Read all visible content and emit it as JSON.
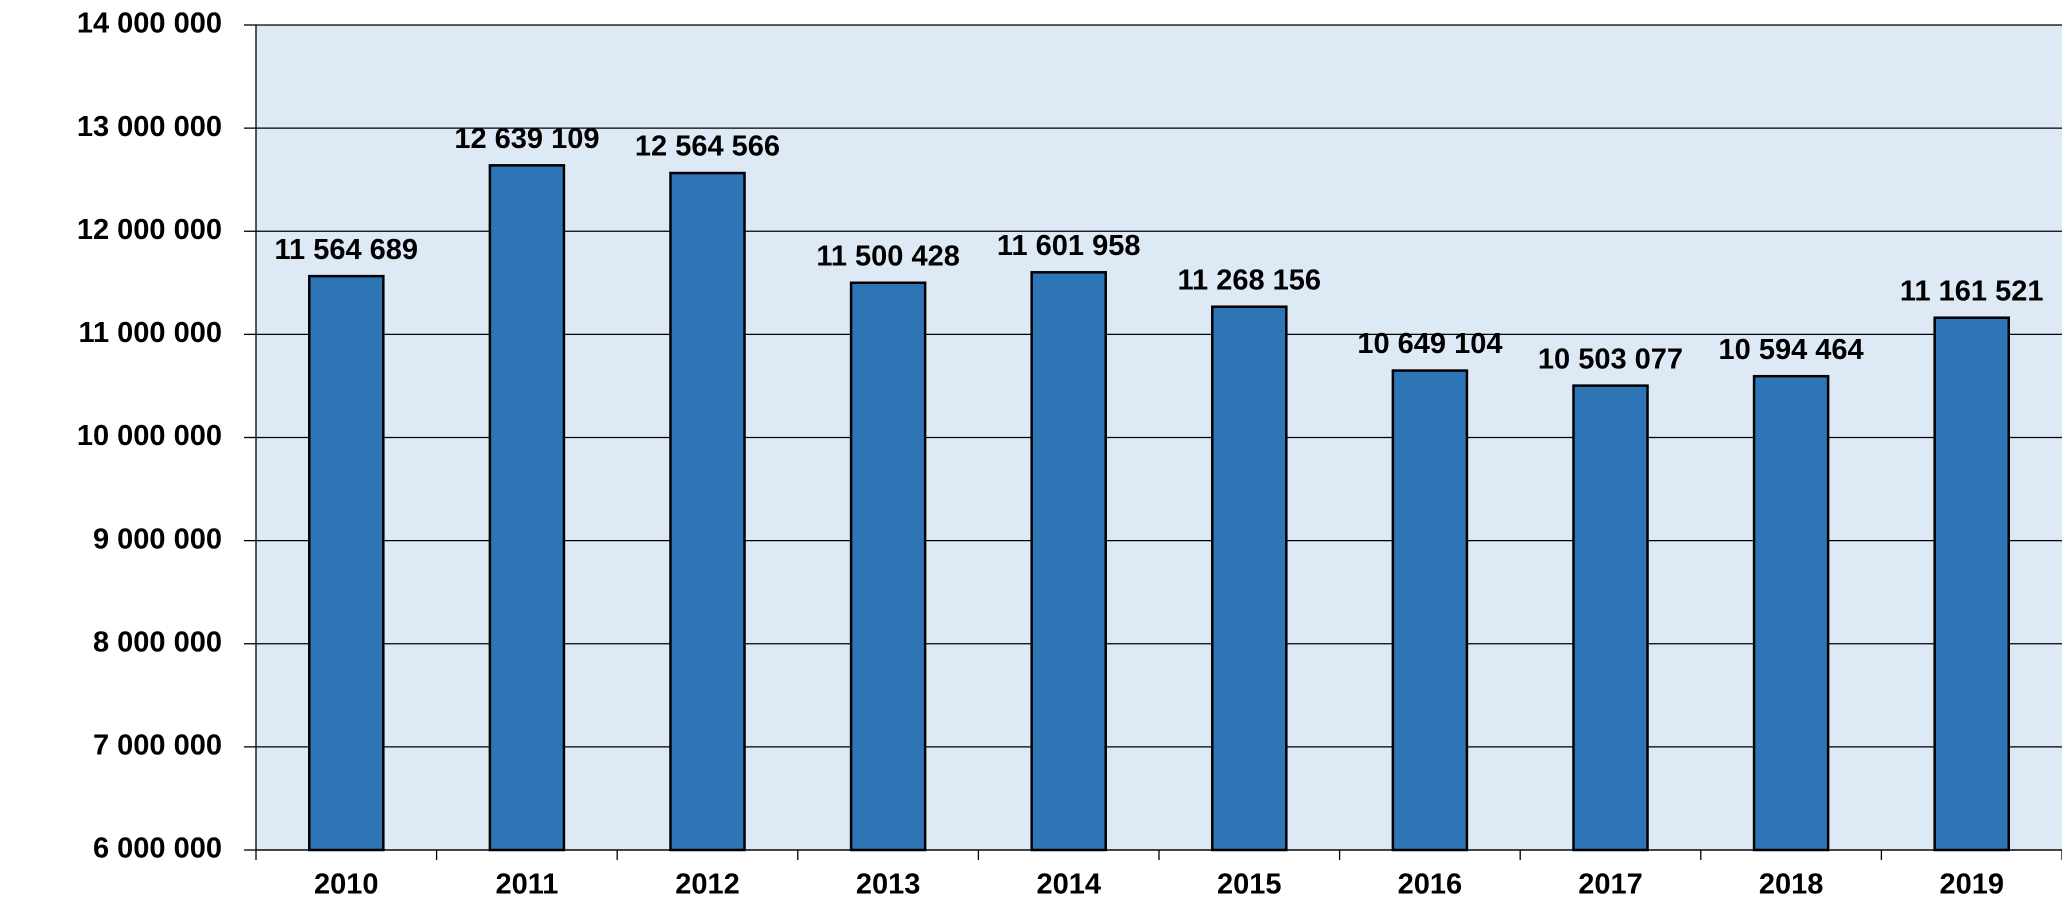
{
  "chart_data": {
    "type": "bar",
    "categories": [
      "2010",
      "2011",
      "2012",
      "2013",
      "2014",
      "2015",
      "2016",
      "2017",
      "2018",
      "2019"
    ],
    "values": [
      11564689,
      12639109,
      12564566,
      11500428,
      11601958,
      11268156,
      10649104,
      10503077,
      10594464,
      11161521
    ],
    "value_labels": [
      "11 564 689",
      "12 639 109",
      "12 564 566",
      "11 500 428",
      "11 601 958",
      "11 268 156",
      "10 649 104",
      "10 503 077",
      "10 594 464",
      "11 161 521"
    ],
    "color": "#2e75b6",
    "ylim": [
      6000000,
      14000000
    ],
    "yticks": [
      {
        "value": 6000000,
        "label": "6 000 000"
      },
      {
        "value": 7000000,
        "label": "7 000 000"
      },
      {
        "value": 8000000,
        "label": "8 000 000"
      },
      {
        "value": 9000000,
        "label": "9 000 000"
      },
      {
        "value": 10000000,
        "label": "10 000 000"
      },
      {
        "value": 11000000,
        "label": "11 000 000"
      },
      {
        "value": 12000000,
        "label": "12 000 000"
      },
      {
        "value": 13000000,
        "label": "13 000 000"
      },
      {
        "value": 14000000,
        "label": "14 000 000"
      }
    ],
    "grid": true
  }
}
